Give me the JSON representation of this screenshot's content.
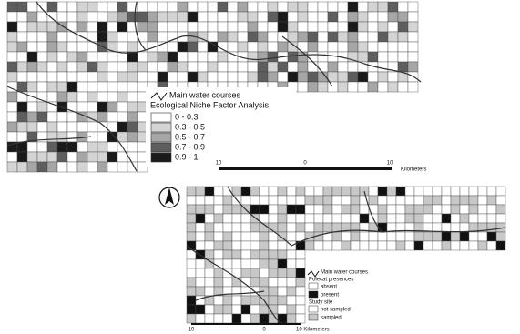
{
  "top_map": {
    "legend_water": "Main water courses",
    "legend_title": "Ecological Niche Factor Analysis",
    "classes": [
      {
        "label": "0 - 0.3",
        "color": "#ffffff"
      },
      {
        "label": "0.3 - 0.5",
        "color": "#d4d4d4"
      },
      {
        "label": "0.5 - 0.7",
        "color": "#a6a6a6"
      },
      {
        "label": "0.7 - 0.9",
        "color": "#5e5e5e"
      },
      {
        "label": "0.9 - 1",
        "color": "#1a1a1a"
      }
    ],
    "scale": {
      "left": "10",
      "middle": "0",
      "right": "10",
      "unit": "Kilometers"
    }
  },
  "bottom_map": {
    "legend_water": "Main water courses",
    "presence_title": "Polecat presences",
    "presence": [
      {
        "label": "absent",
        "color": "#ffffff"
      },
      {
        "label": "present",
        "color": "#111111"
      }
    ],
    "site_title": "Study site",
    "site": [
      {
        "label": "not sampled",
        "color": "#ffffff"
      },
      {
        "label": "sampled",
        "color": "#c8c8c8"
      }
    ],
    "scale": {
      "left": "10",
      "middle": "0",
      "right": "10 Kilometers"
    }
  }
}
